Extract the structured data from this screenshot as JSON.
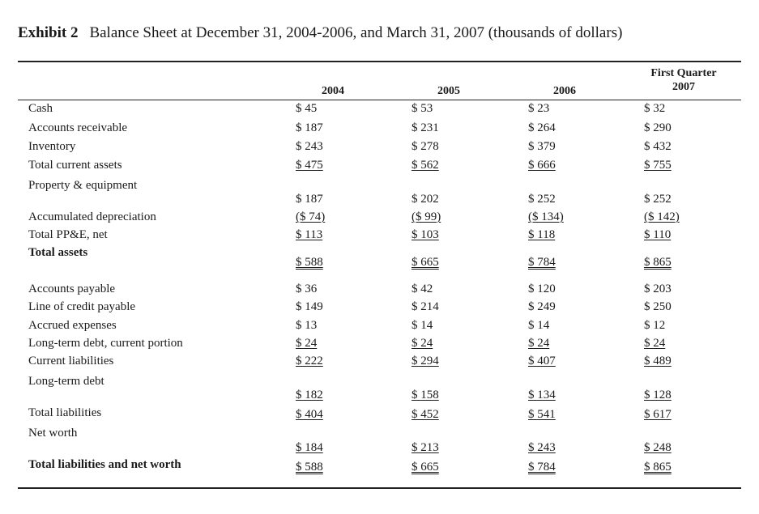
{
  "title": {
    "exhibit": "Exhibit 2",
    "text": "Balance Sheet at December 31, 2004-2006, and March 31, 2007 (thousands of dollars)"
  },
  "columns": [
    "2004",
    "2005",
    "2006",
    "First Quarter 2007"
  ],
  "columns_split": {
    "q_top": "First Quarter",
    "q_bottom": "2007"
  },
  "rows": [
    {
      "label": "Cash",
      "values": [
        "$ 45",
        "$ 53",
        "$ 23",
        "$ 32"
      ]
    },
    {
      "label": "Accounts receivable",
      "values": [
        "$ 187",
        "$ 231",
        "$ 264",
        "$ 290"
      ]
    },
    {
      "label": "Inventory",
      "values": [
        "$ 243",
        "$ 278",
        "$ 379",
        "$ 432"
      ]
    },
    {
      "label": "Total current assets",
      "values": [
        "$ 475",
        "$ 562",
        "$ 666",
        "$ 755"
      ]
    },
    {
      "label": "Property & equipment",
      "values": [
        "$ 187",
        "$ 202",
        "$ 252",
        "$ 252"
      ]
    },
    {
      "label": "Accumulated depreciation",
      "values": [
        "($ 74)",
        "($ 99)",
        "($ 134)",
        "($ 142)"
      ]
    },
    {
      "label": "Total PP&E, net",
      "values": [
        "$ 113",
        "$ 103",
        "$ 118",
        "$ 110"
      ]
    },
    {
      "label": "Total assets",
      "values": [
        "$ 588",
        "$ 665",
        "$ 784",
        "$ 865"
      ]
    },
    {
      "label": "Accounts payable",
      "values": [
        "$ 36",
        "$ 42",
        "$ 120",
        "$ 203"
      ]
    },
    {
      "label": "Line of credit payable",
      "values": [
        "$ 149",
        "$ 214",
        "$ 249",
        "$ 250"
      ]
    },
    {
      "label": "Accrued expenses",
      "values": [
        "$ 13",
        "$ 14",
        "$ 14",
        "$ 12"
      ]
    },
    {
      "label": "Long-term debt, current portion",
      "values": [
        "$ 24",
        "$ 24",
        "$ 24",
        "$ 24"
      ]
    },
    {
      "label": "Current liabilities",
      "values": [
        "$ 222",
        "$ 294",
        "$ 407",
        "$ 489"
      ]
    },
    {
      "label": "Long-term debt",
      "values": [
        "$ 182",
        "$ 158",
        "$ 134",
        "$ 128"
      ]
    },
    {
      "label": "Total liabilities",
      "values": [
        "$ 404",
        "$ 452",
        "$ 541",
        "$ 617"
      ]
    },
    {
      "label": "Net worth",
      "values": [
        "$ 184",
        "$ 213",
        "$ 243",
        "$ 248"
      ]
    },
    {
      "label": "Total liabilities and net worth",
      "values": [
        "$ 588",
        "$ 665",
        "$ 784",
        "$ 865"
      ]
    }
  ]
}
